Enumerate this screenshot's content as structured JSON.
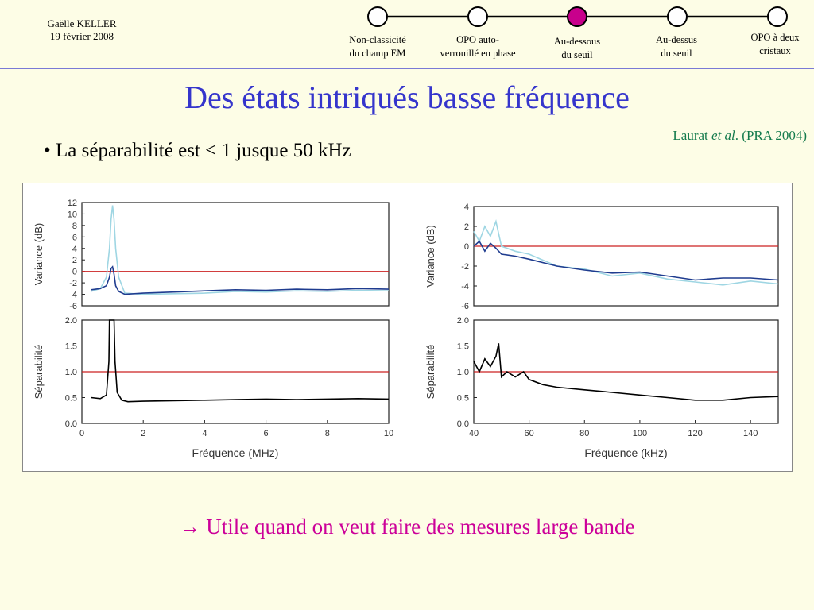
{
  "header": {
    "author": "Gaëlle KELLER",
    "date": "19 février 2008"
  },
  "timeline": {
    "active_index": 2,
    "active_color": "#c8008c",
    "steps": [
      {
        "line1": "Non-classicité",
        "line2": "du champ EM"
      },
      {
        "line1": "OPO auto-",
        "line2": "verrouillé en phase"
      },
      {
        "line1": "Au-dessous",
        "line2": "du seuil"
      },
      {
        "line1": "Au-dessus",
        "line2": "du seuil"
      },
      {
        "line1": "OPO à deux",
        "line2": "cristaux"
      }
    ]
  },
  "slide": {
    "title": "Des états intriqués basse fréquence",
    "citation_author": "Laurat ",
    "citation_etal": "et al",
    "citation_ref": ". (PRA 2004)",
    "bullet": "• La séparabilité est < 1 jusque 50 kHz",
    "conclusion": "→ Utile quand on veut faire des mesures large bande"
  },
  "colors": {
    "title": "#3535cc",
    "citation": "#157b4d",
    "conclusion": "#cc0099",
    "dark_blue_trace": "#1f3c8f",
    "light_blue_trace": "#9fd6e3",
    "reference_line": "#cc2222",
    "separability_trace": "#000000"
  },
  "chart_data": [
    {
      "type": "line",
      "panel": "variance-mhz",
      "xlabel": "",
      "ylabel": "Variance (dB)",
      "xlim": [
        0,
        10
      ],
      "ylim": [
        -6,
        12
      ],
      "yticks": [
        -6,
        -4,
        -2,
        0,
        2,
        4,
        6,
        8,
        10,
        12
      ],
      "reference_line": 0,
      "series": [
        {
          "color": "light",
          "x": [
            0.3,
            0.6,
            0.8,
            0.9,
            0.95,
            1.0,
            1.05,
            1.1,
            1.2,
            1.4,
            2,
            3,
            4,
            5,
            6,
            7,
            8,
            9,
            10
          ],
          "y": [
            -3.5,
            -3,
            -1,
            4,
            9,
            11.5,
            9,
            4,
            -1,
            -3.8,
            -4,
            -3.9,
            -3.8,
            -3.5,
            -3.6,
            -3.4,
            -3.5,
            -3.3,
            -3.4
          ]
        },
        {
          "color": "dark",
          "x": [
            0.3,
            0.6,
            0.8,
            0.9,
            0.95,
            1.0,
            1.05,
            1.1,
            1.2,
            1.4,
            2,
            3,
            4,
            5,
            6,
            7,
            8,
            9,
            10
          ],
          "y": [
            -3.2,
            -3,
            -2.5,
            -1,
            0.5,
            0.8,
            -0.5,
            -2.5,
            -3.5,
            -4,
            -3.8,
            -3.6,
            -3.4,
            -3.2,
            -3.3,
            -3.1,
            -3.2,
            -3.0,
            -3.1
          ]
        }
      ]
    },
    {
      "type": "line",
      "panel": "separability-mhz",
      "xlabel": "Fréquence (MHz)",
      "ylabel": "Séparabilité",
      "xlim": [
        0,
        10
      ],
      "xticks": [
        0,
        2,
        4,
        6,
        8,
        10
      ],
      "ylim": [
        0,
        2.0
      ],
      "yticks": [
        0.0,
        0.5,
        1.0,
        1.5,
        2.0
      ],
      "reference_line": 1.0,
      "series": [
        {
          "color": "black",
          "x": [
            0.3,
            0.6,
            0.8,
            0.88,
            0.9,
            1.05,
            1.08,
            1.15,
            1.3,
            1.5,
            2,
            3,
            4,
            5,
            6,
            7,
            8,
            9,
            10
          ],
          "y": [
            0.5,
            0.48,
            0.55,
            1.2,
            2.0,
            2.0,
            1.2,
            0.6,
            0.45,
            0.42,
            0.43,
            0.44,
            0.45,
            0.46,
            0.47,
            0.46,
            0.47,
            0.48,
            0.47
          ]
        }
      ]
    },
    {
      "type": "line",
      "panel": "variance-khz",
      "xlabel": "",
      "ylabel": "Variance (dB)",
      "xlim": [
        40,
        150
      ],
      "ylim": [
        -6,
        4
      ],
      "yticks": [
        -6,
        -4,
        -2,
        0,
        2,
        4
      ],
      "reference_line": 0,
      "series": [
        {
          "color": "light",
          "x": [
            40,
            42,
            44,
            46,
            48,
            50,
            55,
            60,
            70,
            80,
            90,
            100,
            110,
            120,
            130,
            140,
            150
          ],
          "y": [
            1.5,
            0.5,
            2,
            1,
            2.5,
            0,
            -0.5,
            -0.8,
            -2,
            -2.3,
            -3,
            -2.7,
            -3.3,
            -3.6,
            -3.9,
            -3.5,
            -3.8
          ]
        },
        {
          "color": "dark",
          "x": [
            40,
            42,
            44,
            46,
            48,
            50,
            55,
            60,
            70,
            80,
            90,
            100,
            110,
            120,
            130,
            140,
            150
          ],
          "y": [
            0,
            0.5,
            -0.5,
            0.3,
            -0.2,
            -0.8,
            -1,
            -1.3,
            -2,
            -2.4,
            -2.7,
            -2.6,
            -3,
            -3.4,
            -3.2,
            -3.2,
            -3.4
          ]
        }
      ]
    },
    {
      "type": "line",
      "panel": "separability-khz",
      "xlabel": "Fréquence (kHz)",
      "ylabel": "Séparabilité",
      "xlim": [
        40,
        150
      ],
      "xticks": [
        40,
        60,
        80,
        100,
        120,
        140
      ],
      "ylim": [
        0,
        2.0
      ],
      "yticks": [
        0.0,
        0.5,
        1.0,
        1.5,
        2.0
      ],
      "reference_line": 1.0,
      "series": [
        {
          "color": "black",
          "x": [
            40,
            42,
            44,
            46,
            48,
            49,
            50,
            52,
            55,
            58,
            60,
            65,
            70,
            80,
            90,
            100,
            110,
            120,
            130,
            140,
            150
          ],
          "y": [
            1.2,
            1.0,
            1.25,
            1.1,
            1.3,
            1.55,
            0.9,
            1.0,
            0.9,
            1.0,
            0.85,
            0.75,
            0.7,
            0.65,
            0.6,
            0.55,
            0.5,
            0.45,
            0.45,
            0.5,
            0.52
          ]
        }
      ]
    }
  ]
}
